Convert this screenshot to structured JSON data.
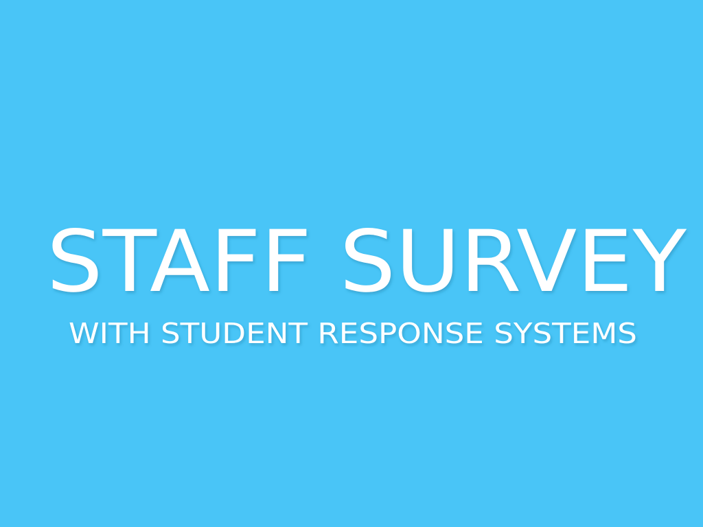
{
  "slide": {
    "title": "STAFF SURVEY",
    "subtitle": "WITH STUDENT RESPONSE SYSTEMS",
    "background_color": "#49c5f7",
    "text_color": "#ffffff"
  }
}
